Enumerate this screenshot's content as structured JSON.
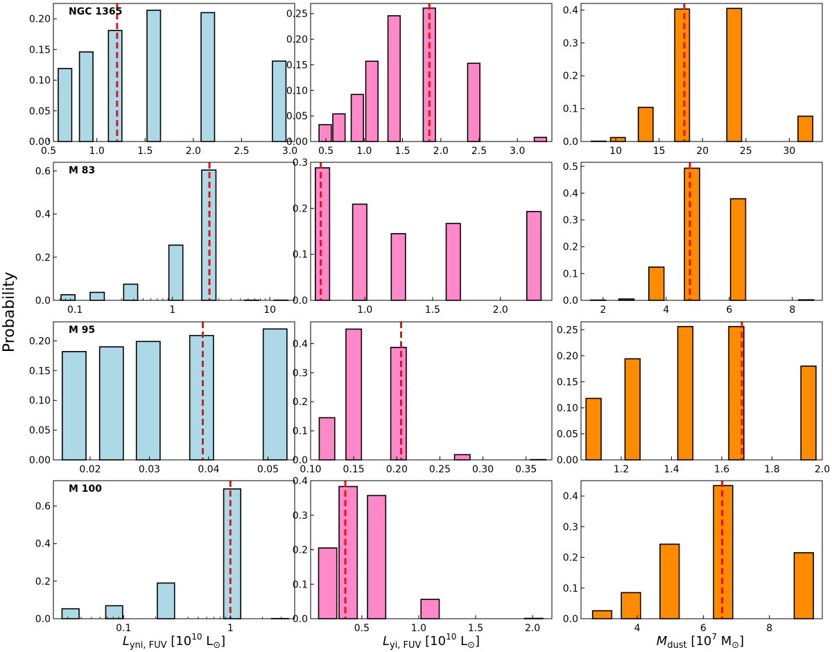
{
  "figure": {
    "ylabel": "Probability",
    "xlabels": [
      {
        "prefix": "L",
        "sub": "yni, FUV",
        "suffix": " [10",
        "sup": "10",
        "unit": " L",
        "sun": "⊙",
        "close": "]"
      },
      {
        "prefix": "L",
        "sub": "yi, FUV",
        "suffix": " [10",
        "sup": "10",
        "unit": " L",
        "sun": "⊙",
        "close": "]"
      },
      {
        "prefix": "M",
        "sub": "dust",
        "suffix": " [10",
        "sup": "7",
        "unit": " M",
        "sun": "⊙",
        "close": "]"
      }
    ]
  },
  "colors": {
    "col0": "#add8e6",
    "col1": "#ff88c8",
    "col2": "#ff8c00",
    "marker": "#ee1111",
    "edge": "#000000"
  },
  "chart_data": [
    {
      "type": "bar",
      "row": 0,
      "col": 0,
      "galaxy": "NGC 1365",
      "xscale": "linear",
      "xlim": [
        0.55,
        3.05
      ],
      "ylim": [
        0,
        0.225
      ],
      "xticks": [
        0.5,
        1.0,
        1.5,
        2.0,
        2.5,
        3.0
      ],
      "xticklabels": [
        "0.5",
        "1.0",
        "1.5",
        "2.0",
        "2.5",
        "3.0"
      ],
      "yticks": [
        0,
        0.05,
        0.1,
        0.15,
        0.2
      ],
      "yticklabels": [
        "0.00",
        "0.05",
        "0.10",
        "0.15",
        "0.20"
      ],
      "bins": [
        [
          0.6,
          0.74
        ],
        [
          0.82,
          0.96
        ],
        [
          1.12,
          1.26
        ],
        [
          1.52,
          1.66
        ],
        [
          2.08,
          2.22
        ],
        [
          2.82,
          2.96
        ]
      ],
      "values": [
        0.119,
        0.146,
        0.181,
        0.214,
        0.21,
        0.131
      ],
      "marker": 1.21
    },
    {
      "type": "bar",
      "row": 0,
      "col": 1,
      "galaxy": "",
      "xscale": "linear",
      "xlim": [
        0.3,
        3.45
      ],
      "ylim": [
        0,
        0.27
      ],
      "xticks": [
        0.5,
        1.0,
        1.5,
        2.0,
        2.5,
        3.0
      ],
      "xticklabels": [
        "0.5",
        "1.0",
        "1.5",
        "2.0",
        "2.5",
        "3.0"
      ],
      "yticks": [
        0,
        0.05,
        0.1,
        0.15,
        0.2,
        0.25
      ],
      "yticklabels": [
        "0.00",
        "0.05",
        "0.10",
        "0.15",
        "0.20",
        "0.25"
      ],
      "bins": [
        [
          0.41,
          0.57
        ],
        [
          0.59,
          0.75
        ],
        [
          0.83,
          0.99
        ],
        [
          1.02,
          1.18
        ],
        [
          1.31,
          1.47
        ],
        [
          1.77,
          1.93
        ],
        [
          2.35,
          2.51
        ],
        [
          3.22,
          3.38
        ]
      ],
      "values": [
        0.033,
        0.054,
        0.092,
        0.157,
        0.246,
        0.261,
        0.153,
        0.008
      ],
      "marker": 1.85
    },
    {
      "type": "bar",
      "row": 0,
      "col": 2,
      "galaxy": "",
      "xscale": "linear",
      "xlim": [
        6.0,
        33.8
      ],
      "ylim": [
        0,
        0.42
      ],
      "xticks": [
        10,
        15,
        20,
        25,
        30
      ],
      "xticklabels": [
        "10",
        "15",
        "20",
        "25",
        "30"
      ],
      "yticks": [
        0,
        0.1,
        0.2,
        0.3,
        0.4
      ],
      "yticklabels": [
        "0.0",
        "0.1",
        "0.2",
        "0.3",
        "0.4"
      ],
      "bins": [
        [
          7.2,
          8.9
        ],
        [
          9.4,
          11.1
        ],
        [
          12.6,
          14.3
        ],
        [
          16.8,
          18.5
        ],
        [
          22.8,
          24.5
        ],
        [
          31.0,
          32.7
        ]
      ],
      "values": [
        0.001,
        0.012,
        0.104,
        0.403,
        0.405,
        0.077
      ],
      "marker": 17.9
    },
    {
      "type": "bar",
      "row": 1,
      "col": 0,
      "galaxy": "M 83",
      "xscale": "log",
      "xlim": [
        0.06,
        18
      ],
      "ylim": [
        0,
        0.64
      ],
      "xticks": [
        0.1,
        1,
        10
      ],
      "xticklabels": [
        "0.1",
        "1",
        "10"
      ],
      "yticks": [
        0,
        0.2,
        0.4,
        0.6
      ],
      "yticklabels": [
        "0.0",
        "0.2",
        "0.4",
        "0.6"
      ],
      "bins": [
        [
          0.072,
          0.1
        ],
        [
          0.143,
          0.2
        ],
        [
          0.316,
          0.44
        ],
        [
          0.92,
          1.28
        ],
        [
          2.0,
          2.8
        ],
        [
          5.5,
          7.7
        ],
        [
          11,
          15.4
        ]
      ],
      "values": [
        0.026,
        0.037,
        0.075,
        0.256,
        0.604,
        0.001,
        0.001
      ],
      "marker": 2.4
    },
    {
      "type": "bar",
      "row": 1,
      "col": 1,
      "galaxy": "",
      "xscale": "linear",
      "xlim": [
        0.6,
        2.38
      ],
      "ylim": [
        0,
        0.3
      ],
      "xticks": [
        1.0,
        1.5,
        2.0
      ],
      "xticklabels": [
        "1.0",
        "1.5",
        "2.0"
      ],
      "yticks": [
        0,
        0.1,
        0.2,
        0.3
      ],
      "yticklabels": [
        "0.0",
        "0.1",
        "0.2",
        "0.3"
      ],
      "bins": [
        [
          0.635,
          0.74
        ],
        [
          0.91,
          1.015
        ],
        [
          1.195,
          1.3
        ],
        [
          1.6,
          1.705
        ],
        [
          2.195,
          2.3
        ]
      ],
      "values": [
        0.288,
        0.209,
        0.145,
        0.167,
        0.193
      ],
      "marker": 0.675
    },
    {
      "type": "bar",
      "row": 1,
      "col": 2,
      "galaxy": "",
      "xscale": "linear",
      "xlim": [
        1.3,
        8.95
      ],
      "ylim": [
        0,
        0.515
      ],
      "xticks": [
        2,
        4,
        6,
        8
      ],
      "xticklabels": [
        "2",
        "4",
        "6",
        "8"
      ],
      "yticks": [
        0,
        0.1,
        0.2,
        0.3,
        0.4,
        0.5
      ],
      "yticklabels": [
        "0.0",
        "0.1",
        "0.2",
        "0.3",
        "0.4",
        "0.5"
      ],
      "bins": [
        [
          1.6,
          2.08
        ],
        [
          2.5,
          2.98
        ],
        [
          3.45,
          3.93
        ],
        [
          4.58,
          5.06
        ],
        [
          6.04,
          6.52
        ],
        [
          8.2,
          8.68
        ]
      ],
      "values": [
        0.001,
        0.005,
        0.124,
        0.493,
        0.379,
        0.002
      ],
      "marker": 4.75
    },
    {
      "type": "bar",
      "row": 2,
      "col": 0,
      "galaxy": "M 95",
      "xscale": "linear",
      "xlim": [
        0.0138,
        0.0545
      ],
      "ylim": [
        0,
        0.232
      ],
      "xticks": [
        0.02,
        0.03,
        0.04,
        0.05
      ],
      "xticklabels": [
        "0.02",
        "0.03",
        "0.04",
        "0.05"
      ],
      "yticks": [
        0,
        0.05,
        0.1,
        0.15,
        0.2
      ],
      "yticklabels": [
        "0.00",
        "0.05",
        "0.10",
        "0.15",
        "0.20"
      ],
      "bins": [
        [
          0.0153,
          0.0193
        ],
        [
          0.0216,
          0.0256
        ],
        [
          0.0278,
          0.0318
        ],
        [
          0.0368,
          0.0408
        ],
        [
          0.0492,
          0.0532
        ]
      ],
      "values": [
        0.182,
        0.19,
        0.199,
        0.209,
        0.22
      ],
      "marker": 0.039
    },
    {
      "type": "bar",
      "row": 2,
      "col": 1,
      "galaxy": "",
      "xscale": "linear",
      "xlim": [
        0.1,
        0.38
      ],
      "ylim": [
        0,
        0.475
      ],
      "xticks": [
        0.1,
        0.15,
        0.2,
        0.25,
        0.3,
        0.35
      ],
      "xticklabels": [
        "0.10",
        "0.15",
        "0.20",
        "0.25",
        "0.30",
        "0.35"
      ],
      "yticks": [
        0,
        0.1,
        0.2,
        0.3,
        0.4
      ],
      "yticklabels": [
        "0.0",
        "0.1",
        "0.2",
        "0.3",
        "0.4"
      ],
      "bins": [
        [
          0.11,
          0.128
        ],
        [
          0.141,
          0.159
        ],
        [
          0.193,
          0.211
        ],
        [
          0.267,
          0.285
        ],
        [
          0.355,
          0.373
        ]
      ],
      "values": [
        0.145,
        0.45,
        0.387,
        0.018,
        0.001
      ],
      "marker": 0.205
    },
    {
      "type": "bar",
      "row": 2,
      "col": 2,
      "galaxy": "",
      "xscale": "linear",
      "xlim": [
        1.04,
        2.0
      ],
      "ylim": [
        0,
        0.265
      ],
      "xticks": [
        1.2,
        1.4,
        1.6,
        1.8,
        2.0
      ],
      "xticklabels": [
        "1.2",
        "1.4",
        "1.6",
        "1.8",
        "2.0"
      ],
      "yticks": [
        0,
        0.05,
        0.1,
        0.15,
        0.2,
        0.25
      ],
      "yticklabels": [
        "0.00",
        "0.05",
        "0.10",
        "0.15",
        "0.20",
        "0.25"
      ],
      "bins": [
        [
          1.06,
          1.12
        ],
        [
          1.215,
          1.275
        ],
        [
          1.425,
          1.485
        ],
        [
          1.628,
          1.688
        ],
        [
          1.915,
          1.975
        ]
      ],
      "values": [
        0.118,
        0.194,
        0.256,
        0.256,
        0.18
      ],
      "marker": 1.68
    },
    {
      "type": "bar",
      "row": 3,
      "col": 0,
      "galaxy": "M 100",
      "xscale": "log",
      "xlim": [
        0.022,
        4.0
      ],
      "ylim": [
        0,
        0.735
      ],
      "xticks": [
        0.1,
        1
      ],
      "xticklabels": [
        "0.1",
        "1"
      ],
      "yticks": [
        0,
        0.2,
        0.4,
        0.6
      ],
      "yticklabels": [
        "0.0",
        "0.2",
        "0.4",
        "0.6"
      ],
      "bins": [
        [
          0.0265,
          0.0383
        ],
        [
          0.068,
          0.098
        ],
        [
          0.207,
          0.3
        ],
        [
          0.865,
          1.25
        ],
        [
          2.43,
          3.5
        ]
      ],
      "values": [
        0.053,
        0.069,
        0.19,
        0.691,
        0.001
      ],
      "marker": 1.0
    },
    {
      "type": "bar",
      "row": 3,
      "col": 1,
      "galaxy": "",
      "xscale": "linear",
      "xlim": [
        0.05,
        2.17
      ],
      "ylim": [
        0,
        0.4
      ],
      "xticks": [
        0.5,
        1.0,
        1.5,
        2.0
      ],
      "xticklabels": [
        "0.5",
        "1.0",
        "1.5",
        "2.0"
      ],
      "yticks": [
        0,
        0.1,
        0.2,
        0.3,
        0.4
      ],
      "yticklabels": [
        "0.0",
        "0.1",
        "0.2",
        "0.3",
        "0.4"
      ],
      "bins": [
        [
          0.12,
          0.28
        ],
        [
          0.3,
          0.46
        ],
        [
          0.55,
          0.71
        ],
        [
          1.02,
          1.18
        ],
        [
          1.93,
          2.09
        ]
      ],
      "values": [
        0.205,
        0.383,
        0.357,
        0.056,
        0.001
      ],
      "marker": 0.355
    },
    {
      "type": "bar",
      "row": 3,
      "col": 2,
      "galaxy": "",
      "xscale": "linear",
      "xlim": [
        2.3,
        9.6
      ],
      "ylim": [
        0,
        0.45
      ],
      "xticks": [
        4,
        6,
        8
      ],
      "xticklabels": [
        "4",
        "6",
        "8"
      ],
      "yticks": [
        0,
        0.1,
        0.2,
        0.3,
        0.4
      ],
      "yticklabels": [
        "0.0",
        "0.1",
        "0.2",
        "0.3",
        "0.4"
      ],
      "bins": [
        [
          2.65,
          3.23
        ],
        [
          3.52,
          4.1
        ],
        [
          4.69,
          5.27
        ],
        [
          6.31,
          6.89
        ],
        [
          8.75,
          9.33
        ]
      ],
      "values": [
        0.026,
        0.085,
        0.243,
        0.434,
        0.215
      ],
      "marker": 6.57
    }
  ]
}
